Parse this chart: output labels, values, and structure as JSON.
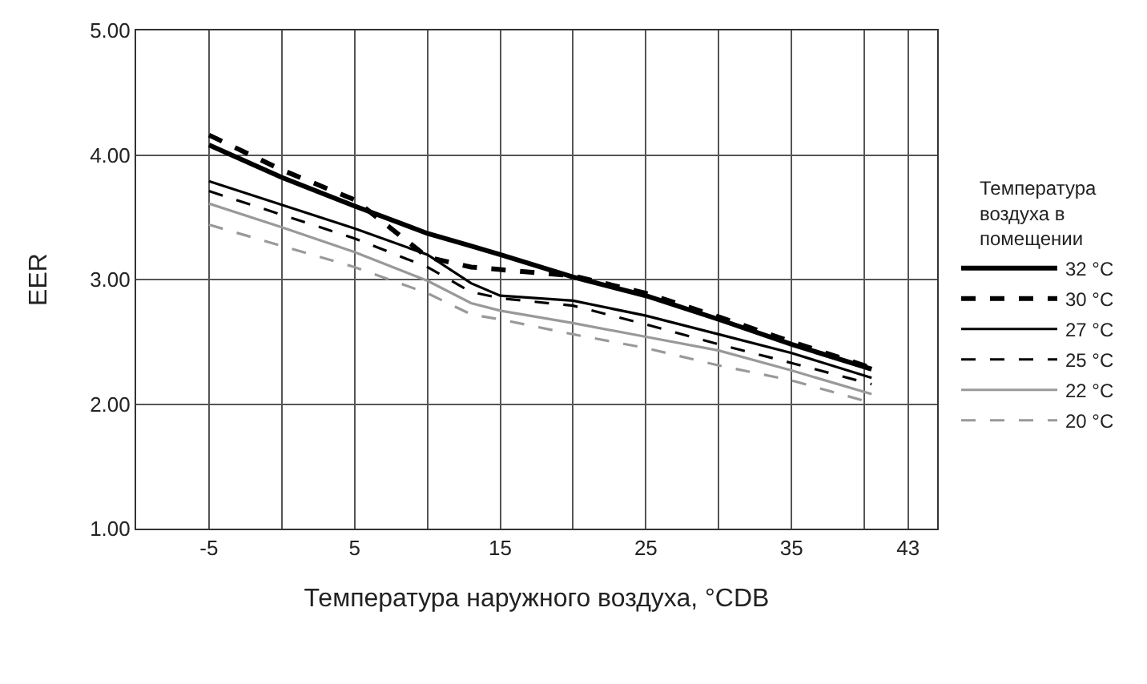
{
  "chart_data": {
    "type": "line",
    "xlabel": "Температура наружного воздуха, °CDB",
    "ylabel": "EER",
    "legend_title": "Температура воздуха в помещении",
    "legend": "right",
    "grid": true,
    "x": [
      -5,
      0,
      5,
      10,
      13,
      15,
      20,
      25,
      30,
      35,
      40.5
    ],
    "xlim": [
      -10,
      45
    ],
    "xticks": [
      -5,
      {
        "value": 0,
        "label": null
      },
      5,
      {
        "value": 10,
        "label": null
      },
      15,
      {
        "value": 20,
        "label": null
      },
      25,
      {
        "value": 30,
        "label": null
      },
      35,
      {
        "value": 40,
        "label": null
      },
      43
    ],
    "ylim": [
      1,
      5
    ],
    "yticks": [
      {
        "value": 1,
        "label": "1.00"
      },
      {
        "value": 2,
        "label": "2.00"
      },
      {
        "value": 3,
        "label": "3.00"
      },
      {
        "value": 4,
        "label": "4.00"
      },
      {
        "value": 5,
        "label": "5.00"
      }
    ],
    "series": [
      {
        "name": "32 °C",
        "color": "#000000",
        "line_style": "solid",
        "values": [
          4.08,
          3.82,
          3.59,
          3.37,
          3.27,
          3.2,
          3.02,
          2.87,
          2.68,
          2.48,
          2.28
        ]
      },
      {
        "name": "30 °C",
        "color": "#000000",
        "line_style": "dashed",
        "values": [
          4.16,
          3.88,
          3.64,
          3.18,
          3.1,
          3.08,
          3.03,
          2.89,
          2.7,
          2.5,
          2.29
        ]
      },
      {
        "name": "27 °C",
        "color": "#000000",
        "line_style": "solid",
        "values": [
          3.79,
          3.6,
          3.41,
          3.2,
          2.97,
          2.87,
          2.83,
          2.71,
          2.56,
          2.41,
          2.21
        ]
      },
      {
        "name": "25 °C",
        "color": "#000000",
        "line_style": "dashed",
        "values": [
          3.71,
          3.52,
          3.33,
          3.1,
          2.9,
          2.85,
          2.79,
          2.64,
          2.48,
          2.33,
          2.16
        ]
      },
      {
        "name": "22 °C",
        "color": "#999999",
        "line_style": "solid",
        "values": [
          3.61,
          3.42,
          3.22,
          2.99,
          2.81,
          2.75,
          2.65,
          2.54,
          2.43,
          2.27,
          2.08
        ]
      },
      {
        "name": "20 °C",
        "color": "#999999",
        "line_style": "dashed",
        "values": [
          3.44,
          3.27,
          3.1,
          2.89,
          2.72,
          2.68,
          2.56,
          2.45,
          2.31,
          2.19,
          2.01
        ]
      }
    ]
  }
}
